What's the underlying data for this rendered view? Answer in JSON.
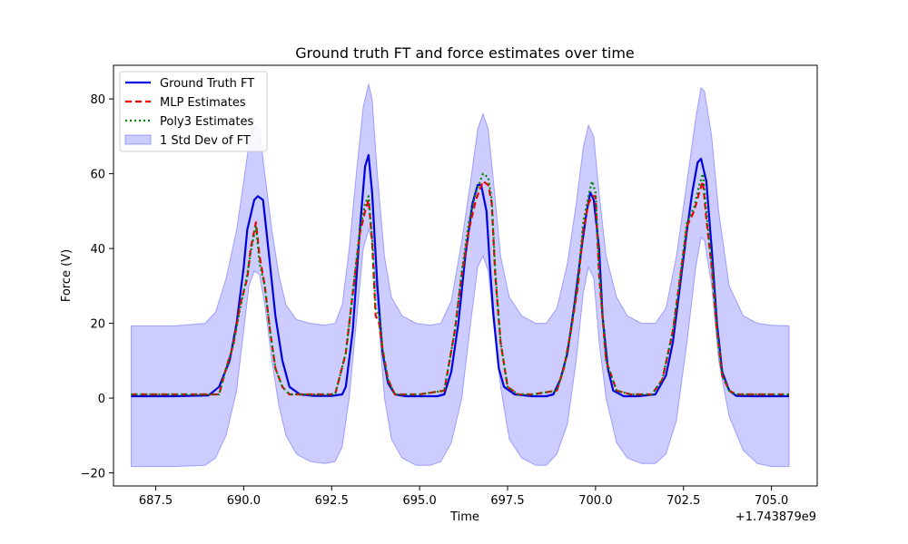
{
  "chart_data": {
    "type": "line",
    "title": "Ground truth FT and force estimates over time",
    "xlabel": "Time",
    "ylabel": "Force (V)",
    "x_offset_label": "+1.743879e9",
    "xlim": [
      686.3,
      706.3
    ],
    "ylim": [
      -23.5,
      89
    ],
    "xticks": [
      687.5,
      690.0,
      692.5,
      695.0,
      697.5,
      700.0,
      702.5,
      705.0
    ],
    "xtick_labels": [
      "687.5",
      "690.0",
      "692.5",
      "695.0",
      "697.5",
      "700.0",
      "702.5",
      "705.0"
    ],
    "yticks": [
      -20,
      0,
      20,
      40,
      60,
      80
    ],
    "ytick_labels": [
      "−20",
      "0",
      "20",
      "40",
      "60",
      "80"
    ],
    "grid": false,
    "legend_position": "top-left",
    "series": [
      {
        "name": "Ground Truth FT",
        "color": "#0000dd",
        "style": "solid",
        "x": [
          686.8,
          688.0,
          689.0,
          689.3,
          689.6,
          689.8,
          690.0,
          690.1,
          690.3,
          690.4,
          690.55,
          690.7,
          690.9,
          691.1,
          691.3,
          691.6,
          692.0,
          692.5,
          692.8,
          692.9,
          693.1,
          693.3,
          693.45,
          693.55,
          693.65,
          693.8,
          693.95,
          694.1,
          694.3,
          694.6,
          695.0,
          695.5,
          695.7,
          695.9,
          696.1,
          696.3,
          696.5,
          696.65,
          696.75,
          696.9,
          697.0,
          697.1,
          697.25,
          697.4,
          697.7,
          698.2,
          698.6,
          698.8,
          699.0,
          699.2,
          699.4,
          699.6,
          699.75,
          699.85,
          699.95,
          700.1,
          700.2,
          700.35,
          700.5,
          700.8,
          701.2,
          701.7,
          702.0,
          702.2,
          702.4,
          702.6,
          702.75,
          702.9,
          703.0,
          703.15,
          703.3,
          703.45,
          703.6,
          703.8,
          704.0,
          704.5,
          705.0,
          705.5
        ],
        "y": [
          0.5,
          0.5,
          0.7,
          3,
          10,
          20,
          35,
          45,
          53,
          54,
          53,
          40,
          22,
          10,
          3,
          1,
          0.6,
          0.6,
          1,
          3,
          18,
          45,
          62,
          65,
          55,
          30,
          12,
          4,
          1,
          0.5,
          0.5,
          0.5,
          1,
          7,
          20,
          38,
          52,
          57,
          57,
          50,
          35,
          22,
          8,
          3,
          1,
          0.5,
          0.5,
          1,
          5,
          12,
          25,
          40,
          50,
          55,
          53,
          40,
          22,
          8,
          2,
          0.5,
          0.5,
          1,
          6,
          15,
          30,
          45,
          55,
          63,
          64,
          58,
          40,
          20,
          7,
          2,
          0.6,
          0.5,
          0.5,
          0.5
        ]
      },
      {
        "name": "MLP Estimates",
        "color": "#ee0000",
        "style": "dashed",
        "x": [
          686.8,
          688.5,
          689.3,
          689.5,
          689.7,
          689.9,
          690.1,
          690.2,
          690.35,
          690.45,
          690.6,
          690.75,
          690.9,
          691.1,
          691.3,
          691.6,
          692.0,
          692.6,
          692.9,
          693.1,
          693.3,
          693.45,
          693.55,
          693.65,
          693.75,
          693.85,
          693.95,
          694.1,
          694.3,
          694.6,
          695.0,
          695.7,
          696.0,
          696.2,
          696.4,
          696.6,
          696.8,
          696.95,
          697.05,
          697.15,
          697.3,
          697.5,
          697.8,
          698.2,
          698.9,
          699.1,
          699.3,
          699.5,
          699.65,
          699.8,
          699.9,
          700.0,
          700.1,
          700.3,
          700.6,
          701.0,
          701.6,
          701.9,
          702.2,
          702.4,
          702.6,
          702.8,
          702.95,
          703.05,
          703.15,
          703.3,
          703.45,
          703.6,
          703.8,
          704.0,
          704.5,
          705.5
        ],
        "y": [
          1.0,
          1.0,
          1.0,
          8,
          14,
          25,
          32,
          40,
          47,
          38,
          30,
          18,
          8,
          3,
          1,
          1,
          1,
          1,
          12,
          28,
          44,
          50,
          53,
          42,
          22,
          20,
          13,
          5,
          1,
          1,
          1,
          2,
          18,
          33,
          45,
          53,
          58,
          57,
          52,
          33,
          15,
          3,
          1,
          1,
          2,
          8,
          18,
          30,
          45,
          52,
          54,
          54,
          33,
          10,
          2,
          1,
          1,
          5,
          18,
          32,
          46,
          50,
          55,
          58,
          48,
          35,
          18,
          6,
          2,
          1,
          1,
          1
        ]
      },
      {
        "name": "Poly3 Estimates",
        "color": "#008800",
        "style": "dotted",
        "x": [
          686.8,
          688.5,
          689.3,
          689.5,
          689.7,
          689.9,
          690.1,
          690.2,
          690.35,
          690.45,
          690.6,
          690.75,
          690.9,
          691.1,
          691.3,
          691.6,
          692.0,
          692.6,
          692.9,
          693.1,
          693.3,
          693.45,
          693.55,
          693.65,
          693.75,
          693.85,
          693.95,
          694.1,
          694.3,
          694.6,
          695.0,
          695.7,
          696.0,
          696.2,
          696.4,
          696.6,
          696.8,
          696.95,
          697.05,
          697.15,
          697.3,
          697.5,
          697.8,
          698.2,
          698.9,
          699.1,
          699.3,
          699.5,
          699.65,
          699.8,
          699.9,
          700.0,
          700.1,
          700.3,
          700.6,
          701.0,
          701.6,
          701.9,
          702.2,
          702.4,
          702.6,
          702.8,
          702.95,
          703.05,
          703.15,
          703.3,
          703.45,
          703.6,
          703.8,
          704.0,
          704.5,
          705.5
        ],
        "y": [
          1.0,
          1.0,
          1.0,
          8,
          14,
          24,
          33,
          39,
          46,
          36,
          30,
          18,
          8,
          3,
          1,
          1,
          1,
          1,
          12,
          28,
          45,
          52,
          54,
          43,
          24,
          22,
          13,
          5,
          1,
          1,
          1,
          2,
          18,
          34,
          47,
          55,
          60,
          59,
          53,
          34,
          15,
          3,
          1,
          1,
          2,
          8,
          18,
          31,
          47,
          54,
          58,
          55,
          34,
          10,
          2,
          1,
          1,
          5,
          18,
          32,
          47,
          51,
          57,
          60,
          50,
          36,
          18,
          6,
          2,
          1,
          1,
          1
        ]
      },
      {
        "name": "1 Std Dev of FT",
        "color": "#0000ff",
        "style": "band",
        "x": [
          686.8,
          688.0,
          688.9,
          689.2,
          689.5,
          689.8,
          690.0,
          690.15,
          690.3,
          690.45,
          690.6,
          690.8,
          691.0,
          691.2,
          691.5,
          691.9,
          692.3,
          692.6,
          692.8,
          693.0,
          693.2,
          693.4,
          693.55,
          693.65,
          693.8,
          694.0,
          694.2,
          694.5,
          694.9,
          695.3,
          695.6,
          695.9,
          696.2,
          696.45,
          696.65,
          696.8,
          696.95,
          697.1,
          697.3,
          697.55,
          697.9,
          698.3,
          698.6,
          698.9,
          699.2,
          699.45,
          699.65,
          699.8,
          699.95,
          700.1,
          700.3,
          700.6,
          700.9,
          701.3,
          701.7,
          702.0,
          702.3,
          702.6,
          702.85,
          703.0,
          703.1,
          703.3,
          703.5,
          703.8,
          704.2,
          704.6,
          705.0,
          705.5
        ],
        "upper": [
          19.3,
          19.3,
          20,
          23,
          32,
          45,
          58,
          68,
          73,
          72,
          60,
          45,
          33,
          25,
          21,
          20,
          19.5,
          20,
          25,
          40,
          60,
          78,
          84,
          80,
          60,
          38,
          27,
          22,
          20,
          19.5,
          20,
          26,
          42,
          58,
          72,
          76,
          72,
          58,
          38,
          27,
          22,
          20,
          20,
          24,
          36,
          52,
          67,
          73,
          70,
          55,
          38,
          27,
          22,
          20,
          20,
          24,
          38,
          58,
          75,
          83,
          82,
          70,
          50,
          30,
          22,
          20,
          19.5,
          19.3
        ],
        "lower": [
          -18.3,
          -18.3,
          -18,
          -16,
          -10,
          2,
          18,
          30,
          34,
          33,
          25,
          10,
          -2,
          -10,
          -15,
          -17,
          -17.5,
          -17,
          -13,
          0,
          20,
          40,
          45,
          42,
          25,
          0,
          -11,
          -16,
          -18,
          -18,
          -17,
          -12,
          0,
          20,
          35,
          38,
          34,
          20,
          3,
          -11,
          -16,
          -18,
          -18,
          -15,
          -7,
          10,
          28,
          35,
          32,
          15,
          0,
          -12,
          -16,
          -17.5,
          -17.5,
          -15,
          -6,
          15,
          35,
          43,
          42,
          30,
          10,
          -5,
          -14,
          -17.5,
          -18.3,
          -18.3
        ]
      }
    ]
  }
}
